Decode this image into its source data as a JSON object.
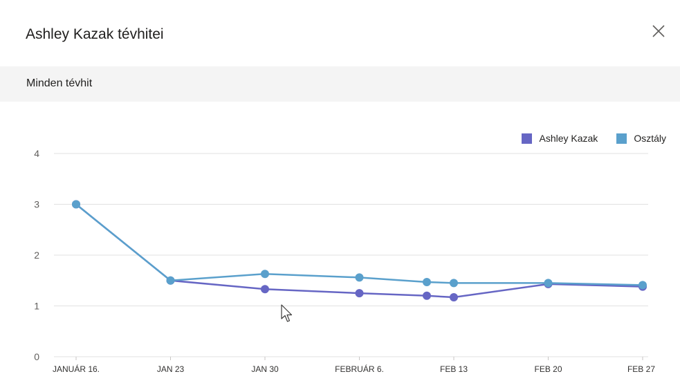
{
  "dialog": {
    "title": "Ashley Kazak tévhitei",
    "section_label": "Minden tévhit"
  },
  "colors": {
    "student": "#6666c4",
    "class": "#5aa0cc",
    "grid": "#e1e1e1",
    "tick_text": "#605e5c"
  },
  "icons": {
    "close": "close-icon"
  },
  "chart_data": {
    "type": "line",
    "categories": [
      "JANUÁR 16.",
      "JAN 23",
      "JAN 30",
      "FEBRUÁR 6.",
      "FEB 13",
      "FEB 20",
      "FEB 27"
    ],
    "series": [
      {
        "name": "Ashley Kazak",
        "points": [
          {
            "x": "2024-01-16",
            "y": 3.0
          },
          {
            "x": "2024-01-23",
            "y": 1.5
          },
          {
            "x": "2024-01-30",
            "y": 1.33
          },
          {
            "x": "2024-02-06",
            "y": 1.25
          },
          {
            "x": "2024-02-11",
            "y": 1.2
          },
          {
            "x": "2024-02-13",
            "y": 1.17
          },
          {
            "x": "2024-02-20",
            "y": 1.43
          },
          {
            "x": "2024-02-27",
            "y": 1.38
          }
        ]
      },
      {
        "name": "Osztály",
        "points": [
          {
            "x": "2024-01-16",
            "y": 3.0
          },
          {
            "x": "2024-01-23",
            "y": 1.5
          },
          {
            "x": "2024-01-30",
            "y": 1.63
          },
          {
            "x": "2024-02-06",
            "y": 1.56
          },
          {
            "x": "2024-02-11",
            "y": 1.47
          },
          {
            "x": "2024-02-13",
            "y": 1.45
          },
          {
            "x": "2024-02-20",
            "y": 1.45
          },
          {
            "x": "2024-02-27",
            "y": 1.41
          }
        ]
      }
    ],
    "ylim": [
      0,
      4
    ],
    "yticks": [
      0,
      1,
      2,
      3,
      4
    ],
    "grid": true,
    "legend_position": "top-right"
  }
}
